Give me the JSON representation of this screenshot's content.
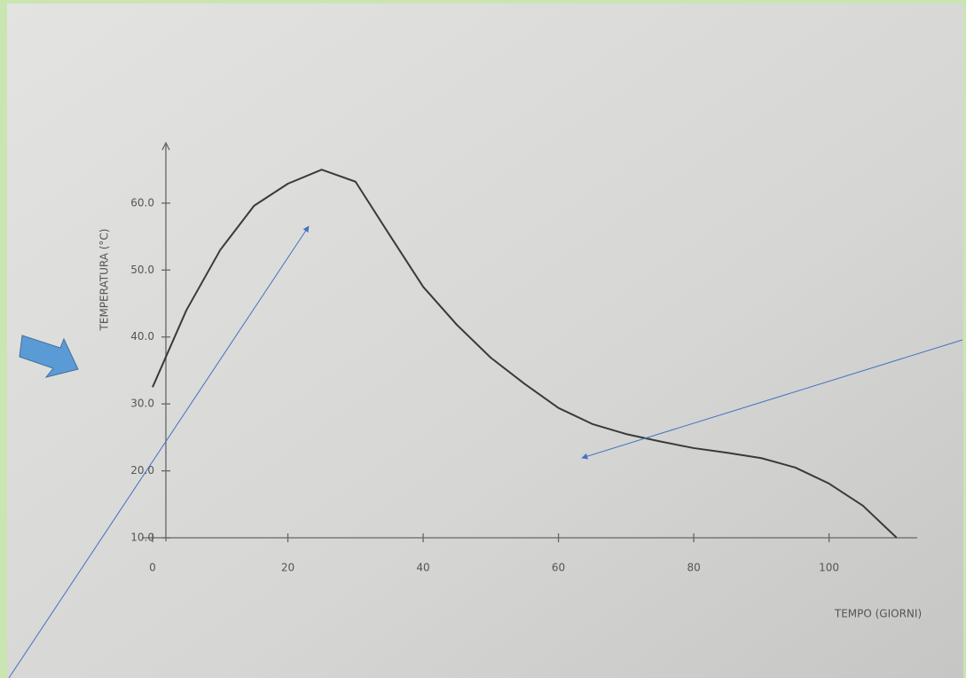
{
  "chart_data": {
    "type": "line",
    "x_label": "TEMPO (GIORNI)",
    "y_label": "TEMPERATURA (°C)",
    "x": [
      0,
      5,
      10,
      15,
      20,
      25,
      30,
      35,
      40,
      45,
      50,
      55,
      60,
      65,
      70,
      75,
      80,
      85,
      90,
      95,
      100,
      105,
      110
    ],
    "values": [
      32.5,
      44,
      53,
      59.6,
      62.9,
      65,
      63.2,
      55.3,
      47.5,
      41.8,
      36.9,
      33,
      29.4,
      27,
      25.5,
      24.4,
      23.4,
      22.7,
      21.9,
      20.5,
      18.1,
      14.8,
      10
    ],
    "color": "#3a3a3a",
    "xlim": [
      0,
      115
    ],
    "xticks": [
      0,
      20,
      40,
      60,
      80,
      100
    ],
    "ylim": [
      10,
      69
    ],
    "yticks": [
      {
        "value": 10,
        "label": "10.0"
      },
      {
        "value": 20,
        "label": "20.0"
      },
      {
        "value": 30,
        "label": "30.0"
      },
      {
        "value": 40,
        "label": "40.0"
      },
      {
        "value": 50,
        "label": "50.0"
      },
      {
        "value": 60,
        "label": "60.0"
      }
    ],
    "grid": false
  }
}
